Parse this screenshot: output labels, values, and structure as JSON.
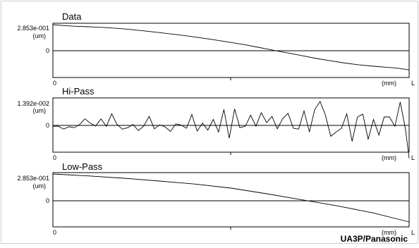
{
  "brand": "UA3P/Panasonic",
  "chart_data": [
    {
      "type": "line",
      "title": "Data",
      "y_max_label": "2.853e-001",
      "y_unit": "(um)",
      "y_zero_label": "0",
      "x_start_label": "0",
      "x_unit": "(mm)",
      "x_end_label": "L",
      "ylim": [
        -0.22,
        0.2853
      ],
      "xlim": [
        0,
        100
      ],
      "series": [
        {
          "x": [
            0,
            3,
            6,
            10,
            14,
            18,
            22,
            26,
            30,
            34,
            38,
            42,
            46,
            50,
            54,
            58,
            62,
            66,
            70,
            74,
            78,
            82,
            86,
            90,
            94,
            97,
            100
          ],
          "values": [
            0.2853,
            0.275,
            0.268,
            0.262,
            0.255,
            0.245,
            0.232,
            0.215,
            0.198,
            0.18,
            0.16,
            0.138,
            0.115,
            0.09,
            0.065,
            0.035,
            0.005,
            -0.025,
            -0.055,
            -0.085,
            -0.11,
            -0.135,
            -0.155,
            -0.17,
            -0.182,
            -0.192,
            -0.21
          ]
        }
      ]
    },
    {
      "type": "line",
      "title": "Hi-Pass",
      "y_max_label": "1.392e-002",
      "y_unit": "(um)",
      "y_zero_label": "0",
      "x_start_label": "0",
      "x_unit": "(mm)",
      "x_end_label": "L",
      "ylim": [
        -0.0195,
        0.01392
      ],
      "xlim": [
        0,
        100
      ],
      "series": [
        {
          "x": [
            0,
            1.5,
            3,
            4.5,
            6,
            7.5,
            9,
            10.5,
            12,
            13.5,
            15,
            16.5,
            18,
            19.5,
            21,
            22.5,
            24,
            25.5,
            27,
            28.5,
            30,
            31.5,
            33,
            34.5,
            36,
            37.5,
            39,
            40.5,
            42,
            43.5,
            45,
            46.5,
            48,
            49.5,
            51,
            52.5,
            54,
            55.5,
            57,
            58.5,
            60,
            61.5,
            63,
            64.5,
            66,
            67.5,
            69,
            70.5,
            72,
            73.5,
            75,
            76.5,
            78,
            79.5,
            81,
            82.5,
            84,
            85.5,
            87,
            88.5,
            90,
            91.5,
            93,
            94.5,
            96,
            97.5,
            99,
            100
          ],
          "values": [
            -0.0005,
            -0.0004,
            -0.002,
            -0.0007,
            -0.0012,
            0.0005,
            0.0035,
            0.0012,
            -0.0003,
            0.0035,
            -0.0005,
            0.0062,
            0.0005,
            -0.002,
            -0.0012,
            0.0005,
            -0.0028,
            -0.0003,
            0.0048,
            -0.0018,
            0.0003,
            -0.0008,
            -0.0032,
            0.0008,
            0.0002,
            -0.0015,
            0.0058,
            -0.003,
            0.0012,
            -0.0025,
            0.0032,
            -0.0035,
            0.0085,
            -0.0068,
            0.0088,
            -0.0012,
            -0.0005,
            0.0055,
            -0.0004,
            0.0068,
            0.0015,
            0.0048,
            -0.0018,
            0.0035,
            0.0065,
            -0.0015,
            -0.002,
            0.0078,
            -0.0035,
            0.0085,
            0.0128,
            0.0055,
            -0.0058,
            -0.0035,
            -0.0015,
            0.0062,
            -0.0085,
            0.0045,
            0.006,
            -0.0075,
            0.0032,
            -0.0052,
            0.0045,
            0.0045,
            -0.0005,
            0.0125,
            -0.0025,
            -0.0175
          ]
        }
      ]
    },
    {
      "type": "line",
      "title": "Low-Pass",
      "y_max_label": "2.853e-001",
      "y_unit": "(um)",
      "y_zero_label": "0",
      "x_start_label": "0",
      "x_unit": "(mm)",
      "x_end_label": "L",
      "ylim": [
        -0.23,
        0.2853
      ],
      "xlim": [
        0,
        100
      ],
      "series": [
        {
          "x": [
            0,
            10,
            20,
            30,
            40,
            50,
            60,
            70,
            80,
            90,
            100
          ],
          "values": [
            0.2853,
            0.265,
            0.24,
            0.21,
            0.178,
            0.135,
            0.075,
            0.01,
            -0.055,
            -0.13,
            -0.225
          ]
        }
      ]
    }
  ]
}
